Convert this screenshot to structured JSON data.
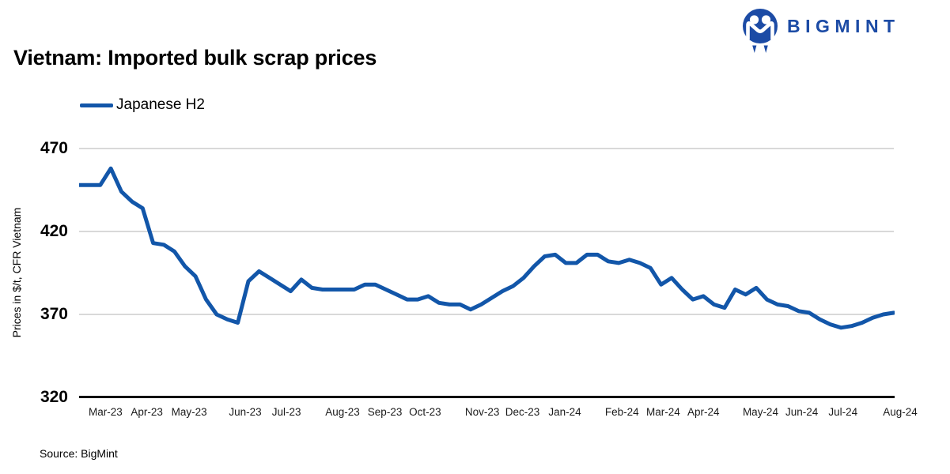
{
  "header": {
    "title": "Vietnam: Imported bulk scrap prices",
    "logo_text": "BIGMINT"
  },
  "legend": {
    "series_label": "Japanese H2"
  },
  "footer": {
    "source": "Source: BigMint"
  },
  "colors": {
    "line": "#1256A9",
    "logo_blue": "#1C4BA5",
    "grid": "#D9D9D9",
    "axis": "#000000"
  },
  "chart_data": {
    "type": "line",
    "title": "Vietnam: Imported bulk scrap prices",
    "xlabel": "",
    "ylabel": "Prices in $/t, CFR Vietnam",
    "unit": "$/t",
    "frequency": "weekly",
    "ylim": [
      320,
      478
    ],
    "yticks": [
      470,
      420,
      370,
      320
    ],
    "grid": "horizontal",
    "legend_position": "top-left",
    "x_tick_labels": [
      {
        "label": "Mar-23",
        "pos": 2.5
      },
      {
        "label": "Apr-23",
        "pos": 6.4
      },
      {
        "label": "May-23",
        "pos": 10.4
      },
      {
        "label": "Jun-23",
        "pos": 15.7
      },
      {
        "label": "Jul-23",
        "pos": 19.6
      },
      {
        "label": "Aug-23",
        "pos": 24.9
      },
      {
        "label": "Sep-23",
        "pos": 28.9
      },
      {
        "label": "Oct-23",
        "pos": 32.7
      },
      {
        "label": "Nov-23",
        "pos": 38.1
      },
      {
        "label": "Dec-23",
        "pos": 41.9
      },
      {
        "label": "Jan-24",
        "pos": 45.9
      },
      {
        "label": "Feb-24",
        "pos": 51.3
      },
      {
        "label": "Mar-24",
        "pos": 55.2
      },
      {
        "label": "Apr-24",
        "pos": 59.0
      },
      {
        "label": "May-24",
        "pos": 64.4
      },
      {
        "label": "Jun-24",
        "pos": 68.3
      },
      {
        "label": "Jul-24",
        "pos": 72.2
      },
      {
        "label": "Aug-24",
        "pos": 77.6
      }
    ],
    "series": [
      {
        "name": "Japanese H2",
        "color": "#1256A9",
        "values": [
          448,
          448,
          448,
          458,
          444,
          438,
          434,
          413,
          412,
          408,
          399,
          393,
          379,
          370,
          367,
          365,
          390,
          396,
          392,
          388,
          384,
          391,
          386,
          385,
          385,
          385,
          385,
          388,
          388,
          385,
          382,
          379,
          379,
          381,
          377,
          376,
          376,
          373,
          376,
          380,
          384,
          387,
          392,
          399,
          405,
          406,
          401,
          401,
          406,
          406,
          402,
          401,
          403,
          401,
          398,
          388,
          392,
          385,
          379,
          381,
          376,
          374,
          385,
          382,
          386,
          379,
          376,
          375,
          372,
          371,
          367,
          364,
          362,
          363,
          365,
          368,
          370,
          371
        ]
      }
    ]
  }
}
